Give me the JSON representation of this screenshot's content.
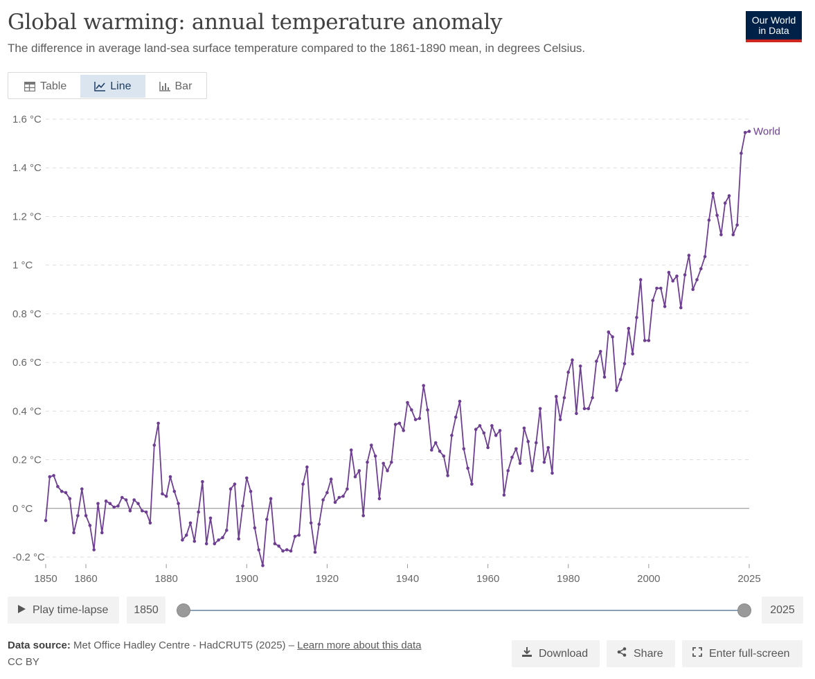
{
  "header": {
    "title": "Global warming: annual temperature anomaly",
    "subtitle": "The difference in average land-sea surface temperature compared to the 1861-1890 mean, in degrees Celsius.",
    "logo_line1": "Our World",
    "logo_line2": "in Data"
  },
  "tabs": [
    {
      "label": "Table",
      "icon": "table-icon",
      "active": false
    },
    {
      "label": "Line",
      "icon": "line-chart-icon",
      "active": true
    },
    {
      "label": "Bar",
      "icon": "bar-chart-icon",
      "active": false
    }
  ],
  "colors": {
    "series": "#6d3e91",
    "accent": "#002147",
    "logo_bar": "#ce261e",
    "active_tab": "#dbe5f0"
  },
  "chart_data": {
    "type": "line",
    "title": "",
    "xlabel": "",
    "ylabel": "",
    "ylim": [
      -0.2,
      1.6
    ],
    "xlim": [
      1850,
      2025
    ],
    "y_ticks": [
      -0.2,
      0,
      0.2,
      0.4,
      0.6,
      0.8,
      1,
      1.2,
      1.4,
      1.6
    ],
    "y_tick_labels": [
      "-0.2 °C",
      "0 °C",
      "0.2 °C",
      "0.4 °C",
      "0.6 °C",
      "0.8 °C",
      "1 °C",
      "1.2 °C",
      "1.4 °C",
      "1.6 °C"
    ],
    "x_ticks": [
      1850,
      1860,
      1880,
      1900,
      1920,
      1940,
      1960,
      1980,
      2000,
      2025
    ],
    "x_tick_labels": [
      "1850",
      "1860",
      "1880",
      "1900",
      "1920",
      "1940",
      "1960",
      "1980",
      "2000",
      "2025"
    ],
    "grid": "horizontal dashed",
    "legend": "inline label at line end",
    "series": [
      {
        "name": "World",
        "x_start": 1850,
        "values": [
          -0.05,
          0.13,
          0.135,
          0.09,
          0.07,
          0.065,
          0.04,
          -0.1,
          -0.03,
          0.08,
          -0.03,
          -0.07,
          -0.17,
          0.02,
          -0.1,
          0.03,
          0.02,
          0.005,
          0.01,
          0.045,
          0.035,
          -0.01,
          0.035,
          0.02,
          -0.01,
          -0.015,
          -0.06,
          0.26,
          0.35,
          0.06,
          0.05,
          0.13,
          0.07,
          0.02,
          -0.13,
          -0.11,
          -0.06,
          -0.135,
          -0.015,
          0.11,
          -0.145,
          -0.04,
          -0.145,
          -0.13,
          -0.12,
          -0.09,
          0.08,
          0.1,
          -0.125,
          0.01,
          0.125,
          0.07,
          -0.08,
          -0.17,
          -0.235,
          -0.045,
          0.04,
          -0.145,
          -0.155,
          -0.175,
          -0.17,
          -0.175,
          -0.115,
          -0.11,
          0.1,
          0.17,
          -0.06,
          -0.18,
          -0.065,
          0.035,
          0.065,
          0.12,
          0.025,
          0.045,
          0.05,
          0.08,
          0.24,
          0.13,
          0.155,
          -0.03,
          0.19,
          0.26,
          0.215,
          0.04,
          0.185,
          0.155,
          0.19,
          0.345,
          0.35,
          0.32,
          0.435,
          0.405,
          0.365,
          0.37,
          0.505,
          0.405,
          0.24,
          0.27,
          0.235,
          0.215,
          0.135,
          0.3,
          0.375,
          0.44,
          0.245,
          0.165,
          0.1,
          0.325,
          0.34,
          0.31,
          0.25,
          0.34,
          0.3,
          0.32,
          0.055,
          0.155,
          0.21,
          0.245,
          0.185,
          0.33,
          0.275,
          0.155,
          0.27,
          0.41,
          0.19,
          0.25,
          0.145,
          0.46,
          0.365,
          0.455,
          0.56,
          0.61,
          0.39,
          0.585,
          0.41,
          0.41,
          0.455,
          0.605,
          0.645,
          0.54,
          0.725,
          0.705,
          0.485,
          0.53,
          0.595,
          0.74,
          0.635,
          0.785,
          0.94,
          0.69,
          0.69,
          0.855,
          0.905,
          0.905,
          0.83,
          0.97,
          0.935,
          0.955,
          0.825,
          0.96,
          1.04,
          0.9,
          0.94,
          0.985,
          1.035,
          1.185,
          1.295,
          1.205,
          1.125,
          1.255,
          1.285,
          1.125,
          1.165,
          1.46,
          1.545,
          1.55
        ]
      }
    ]
  },
  "controls": {
    "play_label": "Play time-lapse",
    "start_year": "1850",
    "end_year": "2025",
    "slider_start": 0,
    "slider_end": 1
  },
  "footer": {
    "source_label": "Data source:",
    "source_text": "Met Office Hadley Centre - HadCRUT5 (2025) –",
    "learn_more": "Learn more about this data",
    "license": "CC BY"
  },
  "actions": {
    "download": "Download",
    "share": "Share",
    "fullscreen": "Enter full-screen"
  }
}
